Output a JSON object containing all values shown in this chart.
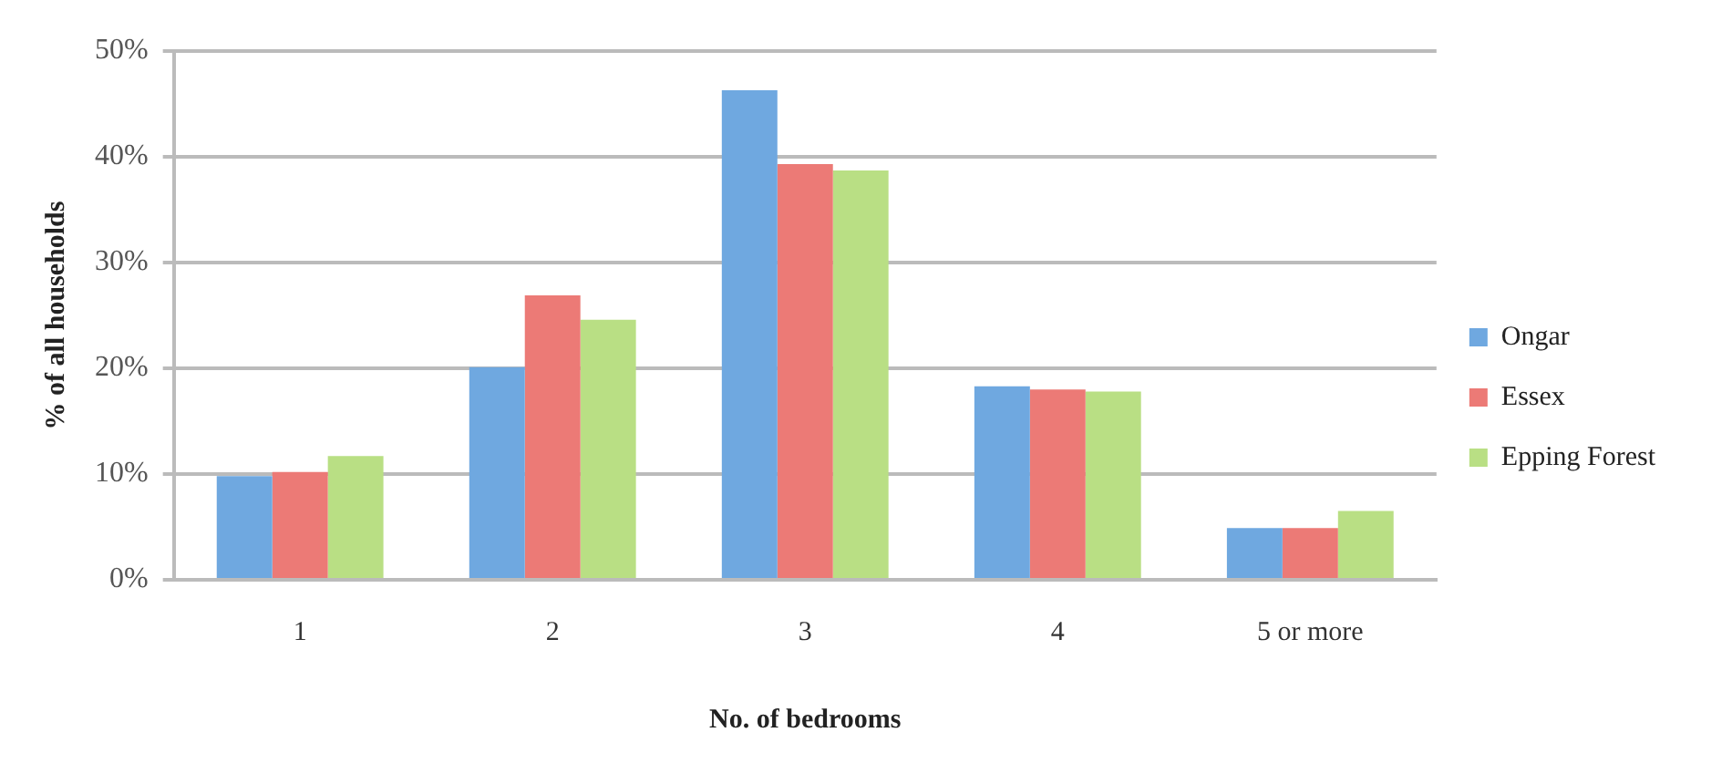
{
  "chart_data": {
    "type": "bar",
    "xlabel": "No. of bedrooms",
    "ylabel": "% of all households",
    "categories": [
      "1",
      "2",
      "3",
      "4",
      "5 or more"
    ],
    "series": [
      {
        "name": "Ongar",
        "color": "#6fa8e0",
        "values": [
          9.8,
          20.1,
          46.3,
          18.3,
          4.9
        ]
      },
      {
        "name": "Essex",
        "color": "#ec7a76",
        "values": [
          10.2,
          26.9,
          39.3,
          18.0,
          4.9
        ]
      },
      {
        "name": "Epping Forest",
        "color": "#b9df84",
        "values": [
          11.7,
          24.6,
          38.7,
          17.8,
          6.5
        ]
      }
    ],
    "ylim": [
      0,
      50
    ],
    "yticks": [
      {
        "value": 0,
        "label": "0%"
      },
      {
        "value": 10,
        "label": "10%"
      },
      {
        "value": 20,
        "label": "20%"
      },
      {
        "value": 30,
        "label": "30%"
      },
      {
        "value": 40,
        "label": "40%"
      },
      {
        "value": 50,
        "label": "50%"
      }
    ],
    "grid": "y",
    "legend": "right"
  }
}
